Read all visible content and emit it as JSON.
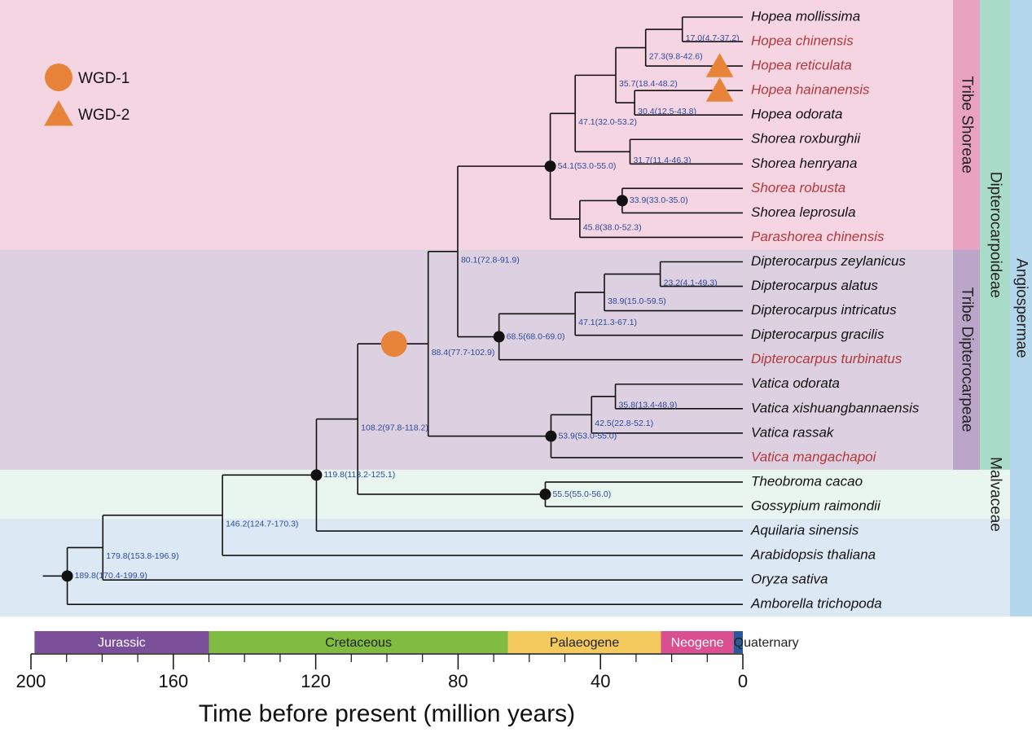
{
  "legend": [
    {
      "label": "WGD-1",
      "shape": "circle"
    },
    {
      "label": "WGD-2",
      "shape": "triangle"
    }
  ],
  "marker_color": "#e8843a",
  "taxa": [
    {
      "name": "Hopea mollissima"
    },
    {
      "name": "Hopea chinensis",
      "highlight": true
    },
    {
      "name": "Hopea reticulata",
      "highlight": true
    },
    {
      "name": "Hopea hainanensis",
      "highlight": true
    },
    {
      "name": "Hopea odorata"
    },
    {
      "name": "Shorea roxburghii"
    },
    {
      "name": "Shorea henryana"
    },
    {
      "name": "Shorea robusta",
      "highlight": true
    },
    {
      "name": "Shorea leprosula"
    },
    {
      "name": "Parashorea chinensis",
      "highlight": true
    },
    {
      "name": "Dipterocarpus zeylanicus"
    },
    {
      "name": "Dipterocarpus alatus"
    },
    {
      "name": "Dipterocarpus intricatus"
    },
    {
      "name": "Dipterocarpus gracilis"
    },
    {
      "name": "Dipterocarpus turbinatus",
      "highlight": true
    },
    {
      "name": "Vatica odorata"
    },
    {
      "name": "Vatica xishuangbannaensis"
    },
    {
      "name": "Vatica rassak"
    },
    {
      "name": "Vatica mangachapoi",
      "highlight": true
    },
    {
      "name": "Theobroma cacao"
    },
    {
      "name": "Gossypium raimondii"
    },
    {
      "name": "Aquilaria sinensis"
    },
    {
      "name": "Arabidopsis thaliana"
    },
    {
      "name": "Oryza sativa"
    },
    {
      "name": "Amborella trichopoda"
    }
  ],
  "nodes": [
    {
      "age": 17.0,
      "label": "17.0(4.7-37.2)",
      "children": [
        "t0",
        "t1"
      ]
    },
    {
      "age": 27.3,
      "label": "27.3(9.8-42.6)",
      "children": [
        "n0",
        "t2"
      ]
    },
    {
      "age": 30.4,
      "label": "30.4(12.5-43.8)",
      "children": [
        "t3",
        "t4"
      ]
    },
    {
      "age": 35.7,
      "label": "35.7(18.4-48.2)",
      "children": [
        "n1",
        "n2"
      ]
    },
    {
      "age": 31.7,
      "label": "31.7(11.4-46.3)",
      "children": [
        "t5",
        "t6"
      ]
    },
    {
      "age": 47.1,
      "label": "47.1(32.0-53.2)",
      "children": [
        "n3",
        "n4"
      ]
    },
    {
      "age": 33.9,
      "label": "33.9(33.0-35.0)",
      "children": [
        "t7",
        "t8"
      ],
      "dot": true
    },
    {
      "age": 45.8,
      "label": "45.8(38.0-52.3)",
      "children": [
        "n6",
        "t9"
      ]
    },
    {
      "age": 54.1,
      "label": "54.1(53.0-55.0)",
      "children": [
        "n5",
        "n7"
      ],
      "dot": true
    },
    {
      "age": 23.2,
      "label": "23.2(4.1-49.3)",
      "children": [
        "t10",
        "t11"
      ]
    },
    {
      "age": 38.9,
      "label": "38.9(15.0-59.5)",
      "children": [
        "n9",
        "t12"
      ]
    },
    {
      "age": 47.1,
      "label": "47.1(21.3-67.1)",
      "children": [
        "n10",
        "t13"
      ]
    },
    {
      "age": 68.5,
      "label": "68.5(68.0-69.0)",
      "children": [
        "n11",
        "t14"
      ],
      "dot": true
    },
    {
      "age": 80.1,
      "label": "80.1(72.8-91.9)",
      "children": [
        "n8",
        "n12"
      ]
    },
    {
      "age": 35.8,
      "label": "35.8(13.4-48.9)",
      "children": [
        "t15",
        "t16"
      ]
    },
    {
      "age": 42.5,
      "label": "42.5(22.8-52.1)",
      "children": [
        "n14",
        "t17"
      ]
    },
    {
      "age": 53.9,
      "label": "53.9(53.0-55.0)",
      "children": [
        "n15",
        "t18"
      ],
      "dot": true
    },
    {
      "age": 88.4,
      "label": "88.4(77.7-102.9)",
      "children": [
        "n13",
        "n16"
      ]
    },
    {
      "age": 55.5,
      "label": "55.5(55.0-56.0)",
      "children": [
        "t19",
        "t20"
      ],
      "dot": true
    },
    {
      "age": 108.2,
      "label": "108.2(97.8-118.2)",
      "children": [
        "n17",
        "n18"
      ]
    },
    {
      "age": 119.8,
      "label": "119.8(113.2-125.1)",
      "children": [
        "n19",
        "t21"
      ],
      "dot": true
    },
    {
      "age": 146.2,
      "label": "146.2(124.7-170.3)",
      "children": [
        "n20",
        "t22"
      ]
    },
    {
      "age": 179.8,
      "label": "179.8(153.8-196.9)",
      "children": [
        "n21",
        "t23"
      ]
    },
    {
      "age": 189.8,
      "label": "189.8(170.4-199.9)",
      "children": [
        "n22",
        "t24"
      ],
      "dot": true
    }
  ],
  "wgd": [
    {
      "legend": 0,
      "node": 17,
      "age": 98
    },
    {
      "legend": 1,
      "taxon": 2,
      "age": 6.5
    },
    {
      "legend": 1,
      "taxon": 3,
      "age": 6.5
    }
  ],
  "bands": [
    {
      "label": "Tribe Shoreae",
      "rows": [
        0,
        9
      ],
      "color": "#f6d5e2",
      "tab_color": "#e9a3c1",
      "level": 1
    },
    {
      "label": "Tribe Dipterocarpeae",
      "rows": [
        10,
        18
      ],
      "color": "#ddd0e0",
      "tab_color": "#bba5c9",
      "level": 1
    },
    {
      "label": "Dipterocarpoideae",
      "rows": [
        0,
        18
      ],
      "tab_color": "#a8dcc9",
      "level": 2
    },
    {
      "label": "Malvaceae",
      "rows": [
        19,
        20
      ],
      "color": "#e9f5ef",
      "tab_color": "#e9f5ef",
      "level": 2
    },
    {
      "rows": [
        21,
        24
      ],
      "color": "#dce9f4",
      "level": 0
    },
    {
      "label": "Angiospermae",
      "rows": [
        0,
        24
      ],
      "tab_color": "#b5d7ec",
      "level": 3
    }
  ],
  "axis": {
    "title": "Time before present (million years)",
    "xlim": [
      200,
      0
    ],
    "xticks": [
      200,
      160,
      120,
      80,
      40,
      0
    ],
    "xminor": [
      190,
      180,
      170,
      150,
      140,
      130,
      110,
      100,
      90,
      70,
      60,
      50,
      30,
      20,
      10
    ],
    "periods": [
      {
        "label": "Jurassic",
        "start": 199,
        "end": 150,
        "color": "#7b4f9a",
        "text_color": "#ffffff"
      },
      {
        "label": "Cretaceous",
        "start": 150,
        "end": 66,
        "color": "#7fbc41",
        "text_color": "#222222"
      },
      {
        "label": "Palaeogene",
        "start": 66,
        "end": 23,
        "color": "#f4c95d",
        "text_color": "#222222"
      },
      {
        "label": "Neogene",
        "start": 23,
        "end": 2.6,
        "color": "#d94f8f",
        "text_color": "#ffffff"
      },
      {
        "label": "Quaternary",
        "start": 2.6,
        "end": 0,
        "color": "#2a5a9a",
        "text_color": "#222222",
        "outside": true
      }
    ]
  }
}
